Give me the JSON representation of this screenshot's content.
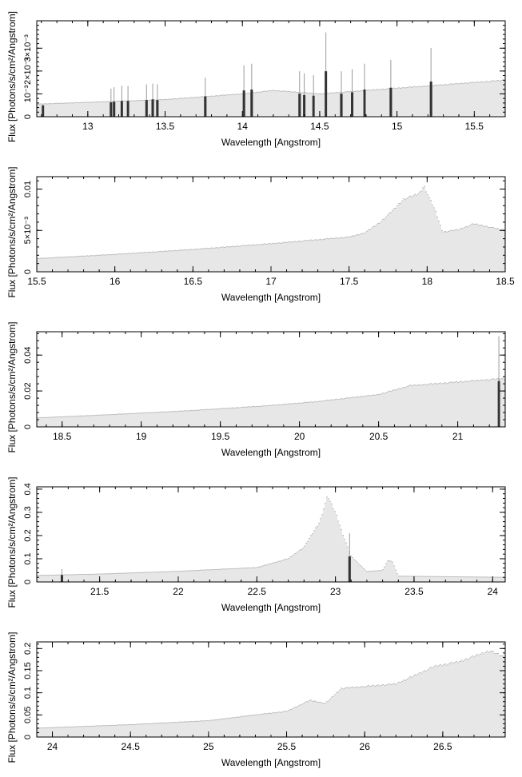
{
  "chart_data": [
    {
      "type": "bar",
      "xlabel": "Wavelength [Angstrom]",
      "ylabel": "Flux [Photons/s/cm²/Angstrom]",
      "xlim": [
        12.67,
        15.7
      ],
      "ylim": [
        0,
        0.0042
      ],
      "xticks": [
        13,
        13.5,
        14,
        14.5,
        15,
        15.5
      ],
      "xtick_labels": [
        "13",
        "13.5",
        "14",
        "14.5",
        "15",
        "15.5"
      ],
      "yticks": [
        0,
        0.001,
        0.002,
        0.003
      ],
      "ytick_labels": [
        "0",
        "10⁻³",
        "2×10⁻³",
        "3×10⁻³"
      ],
      "continuum": {
        "x": [
          12.67,
          13.5,
          14.0,
          14.2,
          14.5,
          15.0,
          15.7
        ],
        "y": [
          0.00055,
          0.00075,
          0.001,
          0.00115,
          0.001,
          0.00125,
          0.0016
        ]
      },
      "dark_bars": [
        {
          "x": 12.71,
          "y": 0.0005,
          "err": 0
        },
        {
          "x": 13.15,
          "y": 0.00063,
          "err": 0.0006
        },
        {
          "x": 13.17,
          "y": 0.00066,
          "err": 0.00063
        },
        {
          "x": 13.22,
          "y": 0.00069,
          "err": 0.00066
        },
        {
          "x": 13.26,
          "y": 0.00069,
          "err": 0.00066
        },
        {
          "x": 13.38,
          "y": 0.00073,
          "err": 0.00069
        },
        {
          "x": 13.42,
          "y": 0.00076,
          "err": 0.00069
        },
        {
          "x": 13.45,
          "y": 0.00073,
          "err": 0.00069
        },
        {
          "x": 13.76,
          "y": 0.00089,
          "err": 0.00082
        },
        {
          "x": 14.01,
          "y": 0.00115,
          "err": 0.0011
        },
        {
          "x": 14.06,
          "y": 0.00119,
          "err": 0.00113
        },
        {
          "x": 14.37,
          "y": 0.00101,
          "err": 0.00098
        },
        {
          "x": 14.4,
          "y": 0.00095,
          "err": 0.00095
        },
        {
          "x": 14.46,
          "y": 0.00092,
          "err": 0.0009
        },
        {
          "x": 14.54,
          "y": 0.00199,
          "err": 0.0017
        },
        {
          "x": 14.64,
          "y": 0.00101,
          "err": 0.00098
        },
        {
          "x": 14.71,
          "y": 0.00107,
          "err": 0.00101
        },
        {
          "x": 14.79,
          "y": 0.00119,
          "err": 0.00113
        },
        {
          "x": 14.96,
          "y": 0.00127,
          "err": 0.00122
        },
        {
          "x": 15.22,
          "y": 0.00154,
          "err": 0.00147
        }
      ]
    },
    {
      "type": "bar",
      "xlabel": "Wavelength [Angstrom]",
      "ylabel": "Flux [Photons/s/cm²/Angstrom]",
      "xlim": [
        15.5,
        18.5
      ],
      "ylim": [
        0,
        0.0115
      ],
      "xticks": [
        15.5,
        16,
        16.5,
        17,
        17.5,
        18,
        18.5
      ],
      "xtick_labels": [
        "15.5",
        "16",
        "16.5",
        "17",
        "17.5",
        "18",
        "18.5"
      ],
      "yticks": [
        0,
        0.005,
        0.01
      ],
      "ytick_labels": [
        "0",
        "5×10⁻³",
        "0.01"
      ],
      "continuum": {
        "x": [
          15.5,
          16.0,
          16.5,
          17.0,
          17.5,
          17.6,
          17.7,
          17.8,
          17.85,
          17.9,
          17.95,
          17.98,
          18.0,
          18.05,
          18.1,
          18.2,
          18.3,
          18.5
        ],
        "y": [
          0.0016,
          0.0021,
          0.0027,
          0.0034,
          0.0042,
          0.0047,
          0.006,
          0.0078,
          0.0088,
          0.0091,
          0.0095,
          0.0104,
          0.0095,
          0.0075,
          0.0048,
          0.0051,
          0.0058,
          0.005
        ]
      },
      "dark_bars": []
    },
    {
      "type": "bar",
      "xlabel": "Wavelength [Angstrom]",
      "ylabel": "Flux [Photons/s/cm²/Angstrom]",
      "xlim": [
        18.34,
        21.3
      ],
      "ylim": [
        0,
        0.053
      ],
      "xticks": [
        18.5,
        19,
        19.5,
        20,
        20.5,
        21
      ],
      "xtick_labels": [
        "18.5",
        "19",
        "19.5",
        "20",
        "20.5",
        "21"
      ],
      "yticks": [
        0,
        0.02,
        0.04
      ],
      "ytick_labels": [
        "0",
        "0.02",
        "0.04"
      ],
      "continuum": {
        "x": [
          18.34,
          18.8,
          19.3,
          19.8,
          20.1,
          20.5,
          20.7,
          21.0,
          21.3
        ],
        "y": [
          0.005,
          0.0068,
          0.009,
          0.0118,
          0.014,
          0.018,
          0.023,
          0.025,
          0.027
        ]
      },
      "dark_bars": [
        {
          "x": 21.26,
          "y": 0.0255,
          "err": 0.025
        }
      ]
    },
    {
      "type": "bar",
      "xlabel": "Wavelength [Angstrom]",
      "ylabel": "Flux [Photons/s/cm²/Angstrom]",
      "xlim": [
        21.1,
        24.08
      ],
      "ylim": [
        0,
        0.41
      ],
      "xticks": [
        21.5,
        22,
        22.5,
        23,
        23.5,
        24
      ],
      "xtick_labels": [
        "21.5",
        "22",
        "22.5",
        "23",
        "23.5",
        "24"
      ],
      "yticks": [
        0,
        0.1,
        0.2,
        0.3,
        0.4
      ],
      "ytick_labels": [
        "0",
        "0.1",
        "0.2",
        "0.3",
        "0.4"
      ],
      "continuum": {
        "x": [
          21.1,
          21.5,
          22.0,
          22.5,
          22.7,
          22.8,
          22.9,
          22.95,
          23.0,
          23.05,
          23.1,
          23.2,
          23.3,
          23.33,
          23.36,
          23.4,
          24.08
        ],
        "y": [
          0.028,
          0.034,
          0.046,
          0.062,
          0.1,
          0.15,
          0.26,
          0.37,
          0.3,
          0.2,
          0.11,
          0.045,
          0.05,
          0.09,
          0.09,
          0.025,
          0.02
        ]
      },
      "dark_bars": [
        {
          "x": 21.26,
          "y": 0.03,
          "err": 0.025
        },
        {
          "x": 23.09,
          "y": 0.11,
          "err": 0.1
        }
      ]
    },
    {
      "type": "bar",
      "xlabel": "Wavelength [Angstrom]",
      "ylabel": "Flux [Photons/s/cm²/Angstrom]",
      "xlim": [
        23.9,
        26.9
      ],
      "ylim": [
        0,
        0.215
      ],
      "xticks": [
        24,
        24.5,
        25,
        25.5,
        26,
        26.5
      ],
      "xtick_labels": [
        "24",
        "24.5",
        "25",
        "25.5",
        "26",
        "26.5"
      ],
      "yticks": [
        0,
        0.05,
        0.1,
        0.15,
        0.2
      ],
      "ytick_labels": [
        "0",
        "0.05",
        "0.1",
        "0.15",
        "0.2"
      ],
      "continuum": {
        "x": [
          23.9,
          24.5,
          25.0,
          25.3,
          25.5,
          25.65,
          25.75,
          25.85,
          26.2,
          26.45,
          26.6,
          26.8,
          26.9
        ],
        "y": [
          0.02,
          0.028,
          0.037,
          0.05,
          0.058,
          0.083,
          0.076,
          0.11,
          0.12,
          0.16,
          0.17,
          0.195,
          0.18
        ]
      },
      "dark_bars": []
    }
  ]
}
